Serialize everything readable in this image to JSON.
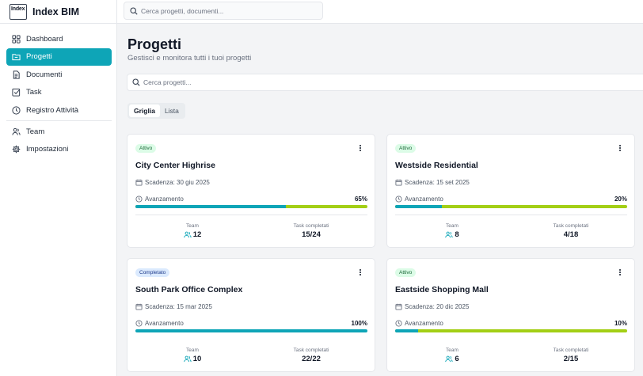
{
  "app": {
    "logo_text": "Index",
    "name": "Index BIM"
  },
  "search": {
    "placeholder": "Cerca progetti, documenti..."
  },
  "sidebar": {
    "items": [
      {
        "label": "Dashboard",
        "icon": "layout-grid-icon"
      },
      {
        "label": "Progetti",
        "icon": "folder-icon",
        "active": true
      },
      {
        "label": "Documenti",
        "icon": "file-text-icon"
      },
      {
        "label": "Task",
        "icon": "check-square-icon"
      },
      {
        "label": "Registro Attività",
        "icon": "clock-icon"
      },
      {
        "label": "Team",
        "icon": "users-icon"
      },
      {
        "label": "Impostazioni",
        "icon": "gear-icon"
      }
    ]
  },
  "page": {
    "title": "Progetti",
    "subtitle": "Gestisci e monitora tutti i tuoi progetti",
    "search_placeholder": "Cerca progetti...",
    "tabs": [
      {
        "label": "Griglia",
        "active": true
      },
      {
        "label": "Lista",
        "active": false
      }
    ]
  },
  "labels": {
    "progress": "Avanzamento",
    "team": "Team",
    "tasks_completed": "Task completati"
  },
  "projects": [
    {
      "status": "Attivo",
      "name": "City Center Highrise",
      "deadline": "Scadenza: 30 giu 2025",
      "progress": 65,
      "progress_text": "65%",
      "team": "12",
      "tasks": "15/24"
    },
    {
      "status": "Attivo",
      "name": "Westside Residential",
      "deadline": "Scadenza: 15 set 2025",
      "progress": 20,
      "progress_text": "20%",
      "team": "8",
      "tasks": "4/18"
    },
    {
      "status": "Completato",
      "name": "South Park Office Complex",
      "deadline": "Scadenza: 15 mar 2025",
      "progress": 100,
      "progress_text": "100%",
      "team": "10",
      "tasks": "22/22"
    },
    {
      "status": "Attivo",
      "name": "Eastside Shopping Mall",
      "deadline": "Scadenza: 20 dic 2025",
      "progress": 10,
      "progress_text": "10%",
      "team": "6",
      "tasks": "2/15"
    }
  ],
  "colors": {
    "accent": "#0ea5b7",
    "progress_remaining": "#a3cf15",
    "status_active_bg": "#dcfce7",
    "status_done_bg": "#dbeafe"
  }
}
